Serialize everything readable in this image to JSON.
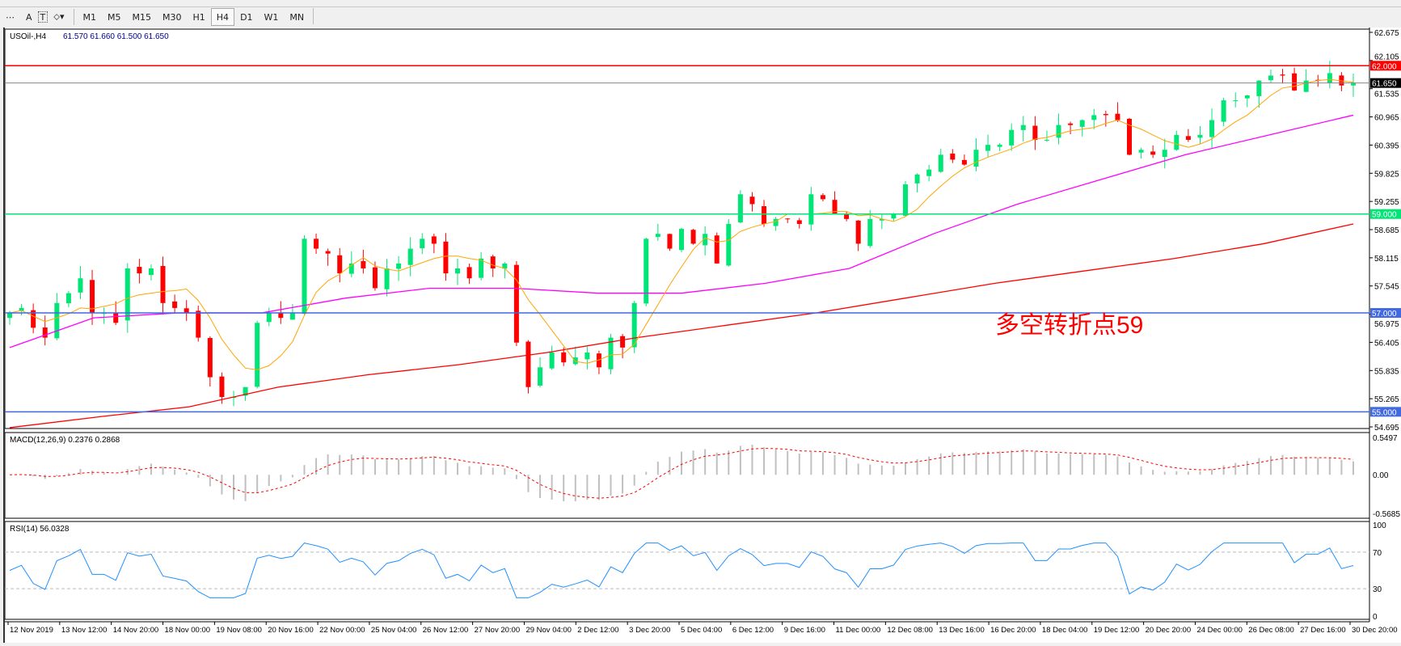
{
  "toolbar": {
    "tools": [
      "A",
      "T"
    ],
    "timeframes": [
      "M1",
      "M5",
      "M15",
      "M30",
      "H1",
      "H4",
      "D1",
      "W1",
      "MN"
    ],
    "active": "H4"
  },
  "header": {
    "symbol": "USOil-,H4",
    "ohlc": "61.570 61.660 61.500 61.650"
  },
  "annotation": {
    "text": "多空转折点59",
    "color": "#ff0000"
  },
  "colors": {
    "bull": "#00e676",
    "bear": "#ff0000",
    "ma_fast": "#ffa500",
    "ma_mid": "#ff00ff",
    "ma_slow": "#ff0000",
    "macd_signal": "#ff0000",
    "macd_hist": "#c0c0c0",
    "rsi": "#1e90ff"
  },
  "chart_data": [
    {
      "type": "candlestick",
      "title": "USOil-,H4",
      "ylim": [
        54.695,
        62.675
      ],
      "yticks": [
        "62.675",
        "62.105",
        "61.535",
        "60.965",
        "60.395",
        "59.825",
        "59.255",
        "58.685",
        "58.115",
        "57.545",
        "56.975",
        "56.405",
        "55.835",
        "55.265",
        "54.695"
      ],
      "closes": [
        57.0,
        57.1,
        56.7,
        56.5,
        57.2,
        57.4,
        57.7,
        57.0,
        57.0,
        56.8,
        57.9,
        57.8,
        57.9,
        57.2,
        57.1,
        57.0,
        56.5,
        55.7,
        55.3,
        55.3,
        55.5,
        56.8,
        57.0,
        56.9,
        57.0,
        58.5,
        58.3,
        58.2,
        57.8,
        58.0,
        57.9,
        57.5,
        57.9,
        58.0,
        58.3,
        58.5,
        58.4,
        57.8,
        57.9,
        57.7,
        58.1,
        57.9,
        58.0,
        56.4,
        55.5,
        55.9,
        56.2,
        56.0,
        56.1,
        56.2,
        55.9,
        56.5,
        56.3,
        57.2,
        58.5,
        58.6,
        58.3,
        58.7,
        58.4,
        58.6,
        58.0,
        58.8,
        59.4,
        59.2,
        58.8,
        58.9,
        58.9,
        58.8,
        59.4,
        59.3,
        59.0,
        58.9,
        58.4,
        58.9,
        58.9,
        59.0,
        59.6,
        59.8,
        59.9,
        60.2,
        60.1,
        60.0,
        60.3,
        60.4,
        60.4,
        60.7,
        60.8,
        60.5,
        60.5,
        60.8,
        60.8,
        60.9,
        61.0,
        61.0,
        60.9,
        60.2,
        60.3,
        60.2,
        60.3,
        60.6,
        60.5,
        60.6,
        60.9,
        61.3,
        61.3,
        61.4,
        61.7,
        61.8,
        61.8,
        61.5,
        61.7,
        61.7,
        61.85,
        61.6,
        61.65
      ],
      "ma_mid": [
        56.3,
        56.9,
        57.0,
        57.0,
        57.3,
        57.5,
        57.5,
        57.4,
        57.4,
        57.6,
        57.9,
        58.6,
        59.2,
        59.7,
        60.2,
        60.6,
        61.0
      ],
      "ma_slow": [
        54.68,
        54.9,
        55.1,
        55.5,
        55.75,
        55.95,
        56.2,
        56.5,
        56.75,
        57.0,
        57.3,
        57.6,
        57.85,
        58.1,
        58.4,
        58.8
      ],
      "hlines": [
        {
          "value": "62.000",
          "color": "#ff0000"
        },
        {
          "value": "61.650",
          "color": "#000000",
          "current": true
        },
        {
          "value": "59.000",
          "color": "#00e676"
        },
        {
          "value": "57.000",
          "color": "#4169e1"
        },
        {
          "value": "55.000",
          "color": "#4169e1"
        }
      ]
    },
    {
      "type": "bar",
      "title": "MACD(12,26,9) 0.2376 0.2868",
      "ylim": [
        -0.5685,
        0.5497
      ],
      "yticks": [
        "0.5497",
        "0.00",
        "-0.5685"
      ]
    },
    {
      "type": "line",
      "title": "RSI(14) 56.0328",
      "ylim": [
        0,
        100
      ],
      "yticks": [
        "100",
        "70",
        "30",
        "0"
      ]
    }
  ],
  "xaxis": {
    "labels": [
      "12 Nov 2019",
      "13 Nov 12:00",
      "14 Nov 20:00",
      "18 Nov 00:00",
      "19 Nov 08:00",
      "20 Nov 16:00",
      "22 Nov 00:00",
      "25 Nov 04:00",
      "26 Nov 12:00",
      "27 Nov 20:00",
      "29 Nov 04:00",
      "2 Dec 12:00",
      "3 Dec 20:00",
      "5 Dec 04:00",
      "6 Dec 12:00",
      "9 Dec 16:00",
      "11 Dec 00:00",
      "12 Dec 08:00",
      "13 Dec 16:00",
      "16 Dec 20:00",
      "18 Dec 04:00",
      "19 Dec 12:00",
      "20 Dec 20:00",
      "24 Dec 00:00",
      "26 Dec 08:00",
      "27 Dec 16:00",
      "30 Dec 20:00"
    ]
  }
}
